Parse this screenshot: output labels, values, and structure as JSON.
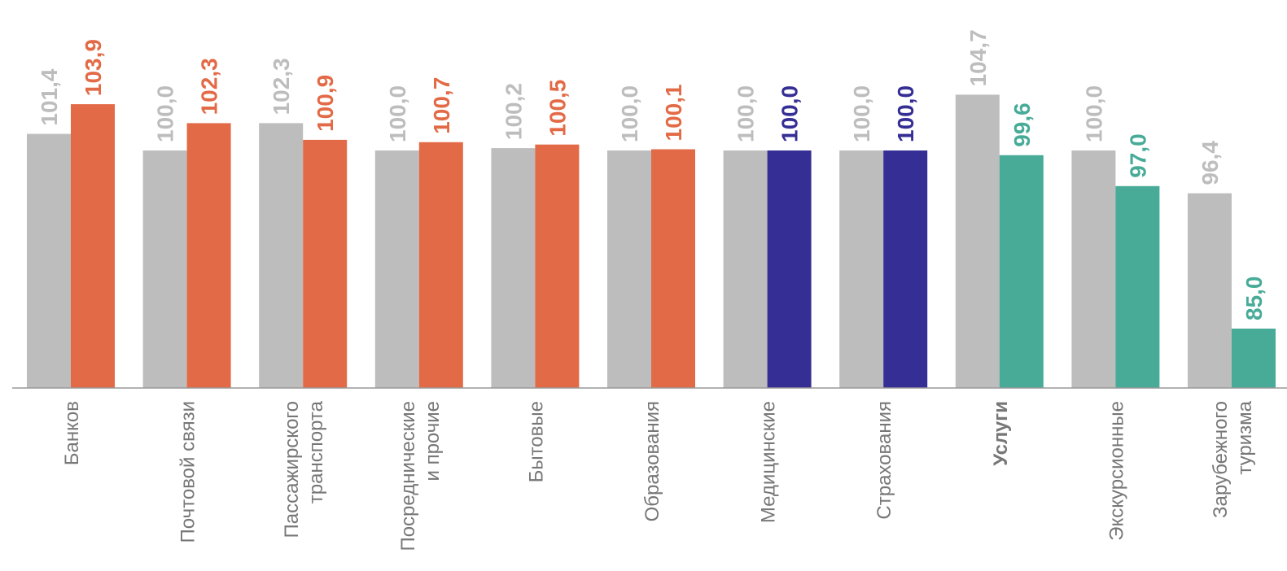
{
  "chart_data": {
    "type": "bar",
    "categories": [
      [
        "Банков"
      ],
      [
        "Почтовой связи"
      ],
      [
        "Пассажирского",
        "транспорта"
      ],
      [
        "Посреднические",
        "и прочие"
      ],
      [
        "Бытовые"
      ],
      [
        "Образования"
      ],
      [
        "Медицинские"
      ],
      [
        "Страхования"
      ],
      [
        "Услуги"
      ],
      [
        "Экскурсионные"
      ],
      [
        "Зарубежного",
        "туризма"
      ]
    ],
    "bold_categories": [
      8
    ],
    "series": [
      {
        "values": [
          101.4,
          100.0,
          102.3,
          100.0,
          100.2,
          100.0,
          100.0,
          100.0,
          104.7,
          100.0,
          96.4
        ],
        "labels": [
          "101,4",
          "100,0",
          "102,3",
          "100,0",
          "100,2",
          "100,0",
          "100,0",
          "100,0",
          "104,7",
          "100,0",
          "96,4"
        ],
        "colors": [
          "#bdbdbd",
          "#bdbdbd",
          "#bdbdbd",
          "#bdbdbd",
          "#bdbdbd",
          "#bdbdbd",
          "#bdbdbd",
          "#bdbdbd",
          "#bdbdbd",
          "#bdbdbd",
          "#bdbdbd"
        ]
      },
      {
        "values": [
          103.9,
          102.3,
          100.9,
          100.7,
          100.5,
          100.1,
          100.0,
          100.0,
          99.6,
          97.0,
          85.0
        ],
        "labels": [
          "103,9",
          "102,3",
          "100,9",
          "100,7",
          "100,5",
          "100,1",
          "100,0",
          "100,0",
          "99,6",
          "97,0",
          "85,0"
        ],
        "colors": [
          "#e36a46",
          "#e36a46",
          "#e36a46",
          "#e36a46",
          "#e36a46",
          "#e36a46",
          "#352e94",
          "#352e94",
          "#47ab98",
          "#47ab98",
          "#47ab98"
        ]
      }
    ],
    "label_colors": {
      "series0": "#bdbdbd"
    },
    "xlabel": "",
    "ylabel": "",
    "ylim": [
      80,
      105.5
    ],
    "grid": false,
    "legend": "none"
  }
}
